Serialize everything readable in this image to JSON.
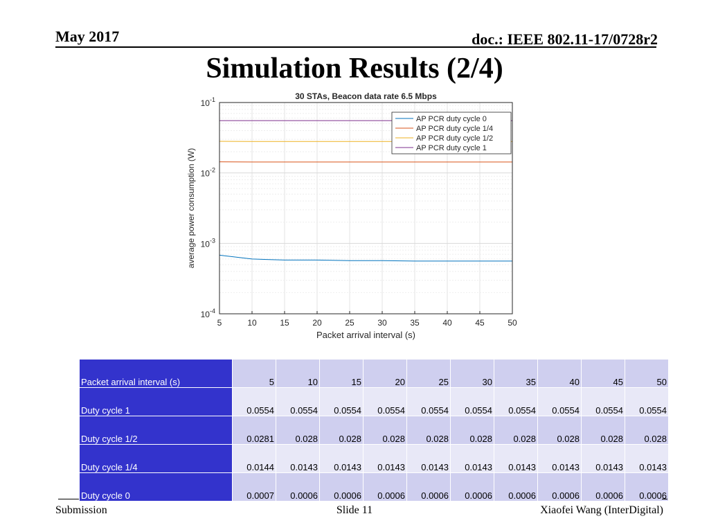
{
  "header": {
    "date": "May 2017",
    "doc": "doc.: IEEE 802.11-17/0728r2"
  },
  "slide_title": "Simulation Results (2/4)",
  "footer": {
    "left": "Submission",
    "center": "Slide 11",
    "right": "Xiaofei Wang (InterDigital)"
  },
  "chart_data": {
    "type": "line",
    "title": "30 STAs, Beacon data rate 6.5 Mbps",
    "xlabel": "Packet arrival interval (s)",
    "ylabel": "average power consumption (W)",
    "x_scale": "linear",
    "y_scale": "log",
    "xlim": [
      5,
      50
    ],
    "ylim": [
      0.0001,
      0.1
    ],
    "x_ticks": [
      5,
      10,
      15,
      20,
      25,
      30,
      35,
      40,
      45,
      50
    ],
    "y_ticks": [
      {
        "value": 0.0001,
        "base": "10",
        "exp": "-4"
      },
      {
        "value": 0.001,
        "base": "10",
        "exp": "-3"
      },
      {
        "value": 0.01,
        "base": "10",
        "exp": "-2"
      },
      {
        "value": 0.1,
        "base": "10",
        "exp": "-1"
      }
    ],
    "grid": true,
    "legend_position": "top-right",
    "x": [
      5,
      10,
      15,
      20,
      25,
      30,
      35,
      40,
      45,
      50
    ],
    "series": [
      {
        "name": "AP PCR duty cycle 0",
        "color": "#0072bd",
        "values": [
          0.00068,
          0.0006,
          0.00058,
          0.00058,
          0.00057,
          0.00057,
          0.00056,
          0.00056,
          0.00056,
          0.00056
        ]
      },
      {
        "name": "AP PCR duty cycle 1/4",
        "color": "#d95319",
        "values": [
          0.0144,
          0.0143,
          0.0143,
          0.0143,
          0.0143,
          0.0143,
          0.0143,
          0.0143,
          0.0143,
          0.0143
        ]
      },
      {
        "name": "AP PCR duty cycle 1/2",
        "color": "#edb120",
        "values": [
          0.0281,
          0.028,
          0.028,
          0.028,
          0.028,
          0.028,
          0.028,
          0.028,
          0.028,
          0.028
        ]
      },
      {
        "name": "AP PCR duty cycle 1",
        "color": "#7e2f8e",
        "values": [
          0.0554,
          0.0554,
          0.0554,
          0.0554,
          0.0554,
          0.0554,
          0.0554,
          0.0554,
          0.0554,
          0.0554
        ]
      }
    ]
  },
  "table": {
    "rows": [
      {
        "label": "Packet arrival interval (s)",
        "values": [
          "5",
          "10",
          "15",
          "20",
          "25",
          "30",
          "35",
          "40",
          "45",
          "50"
        ]
      },
      {
        "label": "Duty cycle 1",
        "values": [
          "0.0554",
          "0.0554",
          "0.0554",
          "0.0554",
          "0.0554",
          "0.0554",
          "0.0554",
          "0.0554",
          "0.0554",
          "0.0554"
        ]
      },
      {
        "label": "Duty cycle 1/2",
        "values": [
          "0.0281",
          "0.028",
          "0.028",
          "0.028",
          "0.028",
          "0.028",
          "0.028",
          "0.028",
          "0.028",
          "0.028"
        ]
      },
      {
        "label": "Duty cycle 1/4",
        "values": [
          "0.0144",
          "0.0143",
          "0.0143",
          "0.0143",
          "0.0143",
          "0.0143",
          "0.0143",
          "0.0143",
          "0.0143",
          "0.0143"
        ]
      },
      {
        "label": "Duty cycle 0",
        "values": [
          "0.0007",
          "0.0006",
          "0.0006",
          "0.0006",
          "0.0006",
          "0.0006",
          "0.0006",
          "0.0006",
          "0.0006",
          "0.0006"
        ]
      }
    ]
  }
}
